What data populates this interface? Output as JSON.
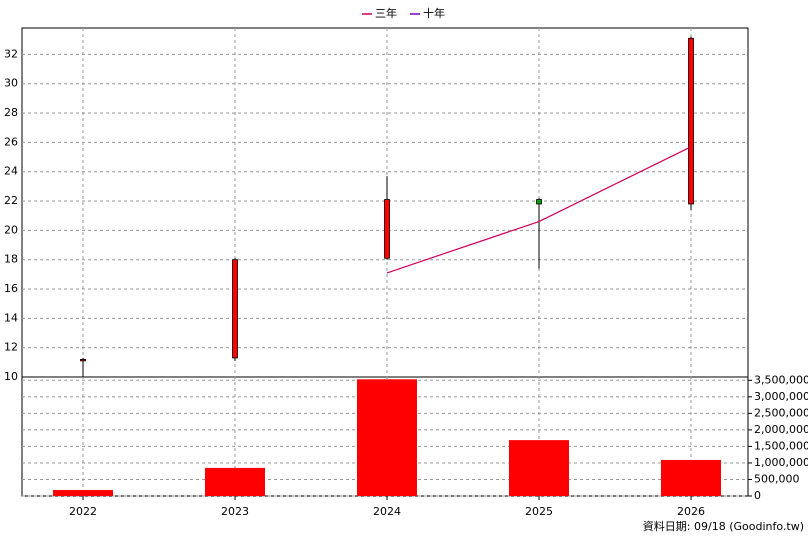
{
  "chart_data": {
    "type": "candlestick",
    "categories": [
      "2022",
      "2023",
      "2024",
      "2025",
      "2026"
    ],
    "open": [
      11.1,
      11.3,
      18.1,
      22.1,
      21.8
    ],
    "high": [
      11.3,
      18.1,
      23.7,
      22.2,
      33.2
    ],
    "low": [
      10.0,
      11.1,
      18.0,
      17.4,
      21.4
    ],
    "close": [
      11.2,
      18.0,
      22.1,
      21.8,
      33.1
    ],
    "up_color": "#ff0000",
    "down_color": "#00a000",
    "series": [
      {
        "name": "三年",
        "color": "#d0005a",
        "values": [
          null,
          null,
          17.1,
          20.6,
          25.7
        ]
      },
      {
        "name": "十年",
        "color": "#8000c0",
        "values": [
          null,
          null,
          null,
          null,
          null
        ]
      }
    ],
    "ylim": [
      10,
      33.8
    ],
    "yticks": [
      10,
      12,
      14,
      16,
      18,
      20,
      22,
      24,
      26,
      28,
      30,
      32
    ],
    "volume": {
      "color": "#ff0000",
      "values": [
        180000,
        850000,
        3530000,
        1690000,
        1090000
      ]
    },
    "y2lim": [
      0,
      3600000
    ],
    "y2ticks": [
      {
        "value": 0,
        "label": "0"
      },
      {
        "value": 500000,
        "label": "500,000"
      },
      {
        "value": 1000000,
        "label": "1,000,000"
      },
      {
        "value": 1500000,
        "label": "1,500,000"
      },
      {
        "value": 2000000,
        "label": "2,000,000"
      },
      {
        "value": 2500000,
        "label": "2,500,000"
      },
      {
        "value": 3000000,
        "label": "3,000,000"
      },
      {
        "value": 3500000,
        "label": "3,500,000"
      }
    ],
    "grid": true,
    "legend": "top",
    "source": "資料日期: 09/18  (Goodinfo.tw)"
  }
}
